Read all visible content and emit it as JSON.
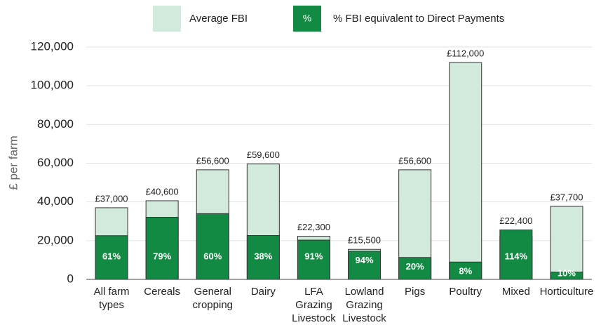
{
  "chart_data": {
    "type": "bar",
    "y_label": "£ per farm",
    "categories": [
      [
        "All farm",
        "types"
      ],
      [
        "Cereals"
      ],
      [
        "General",
        "cropping"
      ],
      [
        "Dairy"
      ],
      [
        "LFA",
        "Grazing",
        "Livestock"
      ],
      [
        "Lowland",
        "Grazing",
        "Livestock"
      ],
      [
        "Pigs"
      ],
      [
        "Poultry"
      ],
      [
        "Mixed"
      ],
      [
        "Horticulture"
      ]
    ],
    "series": [
      {
        "name": "Average FBI",
        "color": "#d2eadb",
        "values": [
          37000,
          40600,
          56600,
          59600,
          22300,
          15500,
          56600,
          112000,
          22400,
          37700
        ],
        "value_labels": [
          "£37,000",
          "£40,600",
          "£56,600",
          "£59,600",
          "£22,300",
          "£15,500",
          "£56,600",
          "£112,000",
          "£22,400",
          "£37,700"
        ]
      },
      {
        "name": "% FBI equivalent to Direct Payments",
        "color": "#138a43",
        "legend_symbol": "%",
        "values": [
          61,
          79,
          60,
          38,
          91,
          94,
          20,
          8,
          114,
          10
        ],
        "value_labels": [
          "61%",
          "79%",
          "60%",
          "38%",
          "91%",
          "94%",
          "20%",
          "8%",
          "114%",
          "10%"
        ]
      }
    ],
    "ylim": [
      0,
      120000
    ],
    "yticks": [
      {
        "value": 0,
        "label": "0"
      },
      {
        "value": 20000,
        "label": "20,000"
      },
      {
        "value": 40000,
        "label": "40,000"
      },
      {
        "value": 60000,
        "label": "60,000"
      },
      {
        "value": 80000,
        "label": "80,000"
      },
      {
        "value": 100000,
        "label": "100,000"
      },
      {
        "value": 120000,
        "label": "120,000"
      }
    ],
    "grid": true
  }
}
